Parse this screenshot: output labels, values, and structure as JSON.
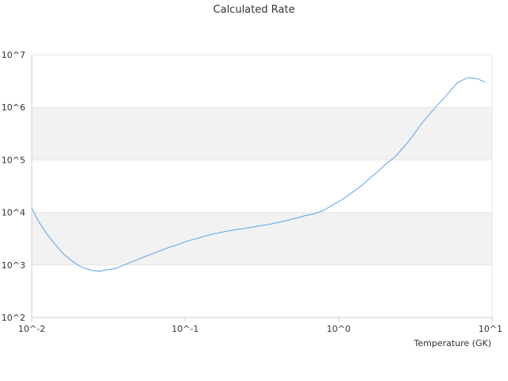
{
  "chart_data": {
    "type": "line",
    "title": "Calculated Rate",
    "xlabel": "Temperature (GK)",
    "ylabel": "",
    "x_scale": "log",
    "y_scale": "log",
    "xlim": [
      0.01,
      10
    ],
    "ylim": [
      100,
      10000000
    ],
    "x_tick_labels": [
      "10^-2",
      "10^-1",
      "10^0",
      "10^1"
    ],
    "y_tick_labels": [
      "10^2",
      "10^3",
      "10^4",
      "10^5",
      "10^6",
      "10^7"
    ],
    "grid": "alternating horizontal bands",
    "legend": "none",
    "colors": {
      "line": "#5aa3e8",
      "band": "#f2f2f2",
      "axis": "#cccccc"
    },
    "series": [
      {
        "x": [
          0.01,
          0.011,
          0.012,
          0.013,
          0.014,
          0.015,
          0.016,
          0.018,
          0.02,
          0.022,
          0.025,
          0.028,
          0.03,
          0.035,
          0.04,
          0.045,
          0.05,
          0.055,
          0.06,
          0.07,
          0.08,
          0.09,
          0.1,
          0.11,
          0.12,
          0.13,
          0.14,
          0.15,
          0.16,
          0.18,
          0.2,
          0.22,
          0.24,
          0.25,
          0.28,
          0.3,
          0.35,
          0.4,
          0.45,
          0.5,
          0.55,
          0.6,
          0.7,
          0.8,
          0.9,
          1.0,
          1.1,
          1.2,
          1.3,
          1.4,
          1.5,
          1.6,
          1.8,
          2.0,
          2.2,
          2.4,
          2.6,
          2.8,
          3.0,
          3.3,
          3.6,
          4.0,
          4.5,
          5.0,
          5.5,
          6.0,
          7.0,
          8.0,
          9.0
        ],
        "values": [
          12000,
          7000,
          4700,
          3400,
          2600,
          2050,
          1650,
          1230,
          1000,
          870,
          780,
          760,
          800,
          850,
          1000,
          1150,
          1300,
          1450,
          1600,
          1900,
          2200,
          2450,
          2750,
          3000,
          3200,
          3450,
          3650,
          3850,
          4000,
          4300,
          4550,
          4750,
          4900,
          5050,
          5300,
          5500,
          5900,
          6400,
          6900,
          7500,
          8000,
          8600,
          9500,
          11000,
          13500,
          16000,
          19000,
          23000,
          27000,
          32000,
          38000,
          45000,
          60000,
          80000,
          100000,
          125000,
          165000,
          210000,
          270000,
          400000,
          560000,
          800000,
          1180000,
          1650000,
          2300000,
          3000000,
          3700000,
          3500000,
          3000000
        ]
      }
    ]
  }
}
